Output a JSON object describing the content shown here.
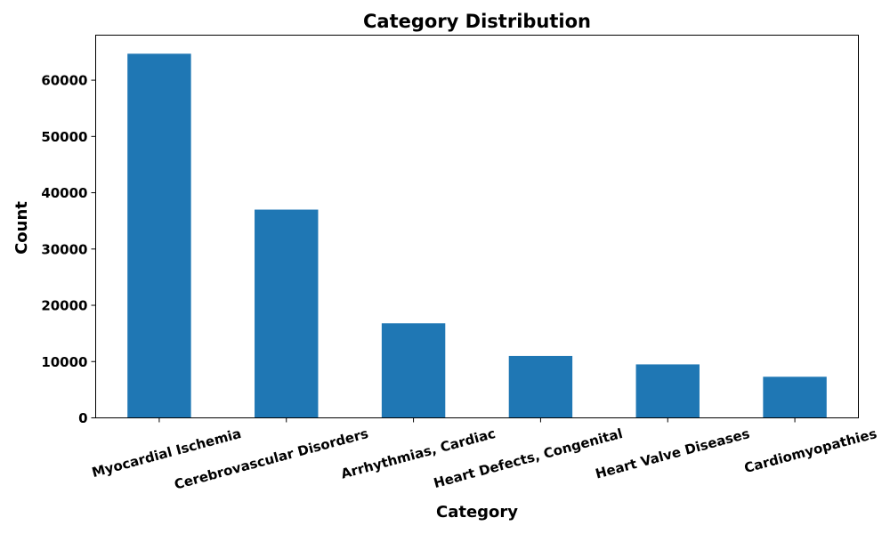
{
  "chart_data": {
    "type": "bar",
    "title": "Category Distribution",
    "xlabel": "Category",
    "ylabel": "Count",
    "categories": [
      "Myocardial Ischemia",
      "Cerebrovascular Disorders",
      "Arrhythmias, Cardiac",
      "Heart Defects, Congenital",
      "Heart Valve Diseases",
      "Cardiomyopathies"
    ],
    "values": [
      64700,
      37000,
      16800,
      11000,
      9500,
      7300
    ],
    "ylim": [
      0,
      68000
    ],
    "yticks": [
      0,
      10000,
      20000,
      30000,
      40000,
      50000,
      60000
    ],
    "ytick_labels": [
      "0",
      "10000",
      "20000",
      "30000",
      "40000",
      "50000",
      "60000"
    ],
    "bar_color": "#1f77b4",
    "grid": false,
    "x_tick_rotation_deg": 15
  }
}
